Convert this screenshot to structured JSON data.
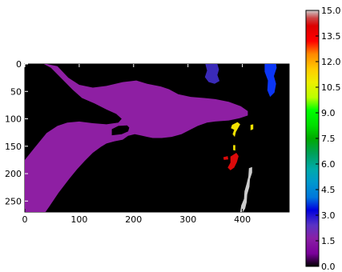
{
  "chart_data": {
    "type": "heatmap",
    "colormap": "nipy_spectral",
    "vmin": 0,
    "vmax": 15,
    "xlim": [
      0,
      486
    ],
    "ylim": [
      0,
      270
    ],
    "y_inverted": true,
    "background_value": 0,
    "x_ticks": [
      "0",
      "100",
      "200",
      "300",
      "400"
    ],
    "y_ticks": [
      "0",
      "50",
      "100",
      "150",
      "200",
      "250"
    ],
    "colorbar_ticks": [
      "0.0",
      "1.5",
      "3.0",
      "4.5",
      "6.0",
      "7.5",
      "9.0",
      "10.5",
      "12.0",
      "13.5",
      "15.0"
    ],
    "regions": [
      {
        "value": 1.5,
        "color": "#8e1fa3",
        "points": [
          [
            40,
            0
          ],
          [
            60,
            4
          ],
          [
            80,
            25
          ],
          [
            100,
            38
          ],
          [
            125,
            43
          ],
          [
            150,
            40
          ],
          [
            180,
            33
          ],
          [
            205,
            30
          ],
          [
            225,
            36
          ],
          [
            250,
            41
          ],
          [
            265,
            46
          ],
          [
            282,
            55
          ],
          [
            305,
            60
          ],
          [
            330,
            62
          ],
          [
            350,
            64
          ],
          [
            375,
            69
          ],
          [
            397,
            77
          ],
          [
            410,
            86
          ],
          [
            410,
            94
          ],
          [
            395,
            99
          ],
          [
            375,
            103
          ],
          [
            350,
            105
          ],
          [
            335,
            107
          ],
          [
            318,
            113
          ],
          [
            302,
            121
          ],
          [
            288,
            128
          ],
          [
            270,
            133
          ],
          [
            252,
            135
          ],
          [
            235,
            135
          ],
          [
            225,
            133
          ],
          [
            212,
            130
          ],
          [
            202,
            128
          ],
          [
            190,
            131
          ],
          [
            180,
            138
          ],
          [
            165,
            141
          ],
          [
            150,
            145
          ],
          [
            140,
            151
          ],
          [
            125,
            162
          ],
          [
            110,
            177
          ],
          [
            96,
            192
          ],
          [
            82,
            209
          ],
          [
            62,
            235
          ],
          [
            45,
            260
          ],
          [
            38,
            270
          ],
          [
            0,
            270
          ],
          [
            0,
            175
          ],
          [
            16,
            155
          ],
          [
            40,
            126
          ],
          [
            60,
            113
          ],
          [
            78,
            107
          ],
          [
            100,
            105
          ],
          [
            125,
            108
          ],
          [
            150,
            110
          ],
          [
            172,
            107
          ],
          [
            178,
            100
          ],
          [
            168,
            91
          ],
          [
            150,
            83
          ],
          [
            128,
            72
          ],
          [
            105,
            62
          ],
          [
            88,
            47
          ],
          [
            68,
            27
          ],
          [
            48,
            7
          ],
          [
            35,
            0
          ]
        ]
      },
      {
        "value": 0,
        "color": "#000000",
        "points": [
          [
            160,
            130
          ],
          [
            178,
            128
          ],
          [
            190,
            123
          ],
          [
            192,
            116
          ],
          [
            188,
            112
          ],
          [
            172,
            113
          ],
          [
            160,
            119
          ]
        ]
      },
      {
        "value": 0,
        "color": "#000000",
        "points": [
          [
            262,
            140
          ],
          [
            278,
            138
          ],
          [
            298,
            137
          ],
          [
            312,
            136
          ],
          [
            312,
            141
          ],
          [
            295,
            144
          ],
          [
            278,
            145
          ],
          [
            264,
            144
          ]
        ]
      },
      {
        "value": 2.6,
        "color": "#3a2ab8",
        "points": [
          [
            332,
            0
          ],
          [
            354,
            0
          ],
          [
            357,
            10
          ],
          [
            354,
            20
          ],
          [
            358,
            31
          ],
          [
            349,
            36
          ],
          [
            338,
            33
          ],
          [
            331,
            24
          ],
          [
            335,
            12
          ]
        ]
      },
      {
        "value": 3.1,
        "color": "#0b36f5",
        "points": [
          [
            441,
            0
          ],
          [
            462,
            0
          ],
          [
            463,
            7
          ],
          [
            458,
            22
          ],
          [
            462,
            36
          ],
          [
            459,
            52
          ],
          [
            451,
            60
          ],
          [
            446,
            48
          ],
          [
            447,
            30
          ],
          [
            441,
            14
          ]
        ]
      },
      {
        "value": 11.6,
        "color": "#f2e201",
        "points": [
          [
            381,
            111
          ],
          [
            391,
            106
          ],
          [
            396,
            110
          ],
          [
            392,
            117
          ],
          [
            388,
            124
          ],
          [
            386,
            133
          ],
          [
            382,
            128
          ],
          [
            385,
            120
          ],
          [
            379,
            117
          ]
        ]
      },
      {
        "value": 11.6,
        "color": "#f2e201",
        "points": [
          [
            415,
            111
          ],
          [
            420,
            110
          ],
          [
            420,
            119
          ],
          [
            415,
            121
          ]
        ]
      },
      {
        "value": 11.6,
        "color": "#f2e201",
        "points": [
          [
            383,
            148
          ],
          [
            387,
            148
          ],
          [
            387,
            158
          ],
          [
            383,
            157
          ]
        ]
      },
      {
        "value": 14.2,
        "color": "#dc0a0a",
        "points": [
          [
            365,
            170
          ],
          [
            373,
            168
          ],
          [
            374,
            174
          ],
          [
            366,
            175
          ]
        ]
      },
      {
        "value": 14.2,
        "color": "#dc0a0a",
        "points": [
          [
            378,
            169
          ],
          [
            389,
            162
          ],
          [
            393,
            168
          ],
          [
            390,
            179
          ],
          [
            385,
            189
          ],
          [
            378,
            194
          ],
          [
            373,
            189
          ],
          [
            378,
            180
          ]
        ]
      },
      {
        "value": 15,
        "color": "#cccccc",
        "points": [
          [
            412,
            190
          ],
          [
            418,
            188
          ],
          [
            418,
            198
          ],
          [
            414,
            210
          ],
          [
            413,
            224
          ],
          [
            409,
            238
          ],
          [
            408,
            252
          ],
          [
            405,
            264
          ],
          [
            401,
            270
          ],
          [
            396,
            270
          ],
          [
            398,
            258
          ],
          [
            403,
            246
          ],
          [
            404,
            232
          ],
          [
            408,
            218
          ],
          [
            411,
            205
          ]
        ]
      }
    ]
  }
}
